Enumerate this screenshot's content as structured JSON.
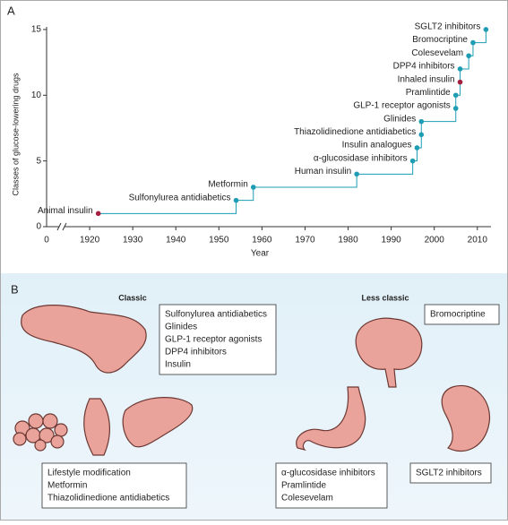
{
  "chart_data": {
    "type": "step",
    "panel_label": "A",
    "x_label": "Year",
    "y_label": "Classes of glucose-lowering drugs",
    "x_break_label": "0",
    "labels": [
      "Animal insulin",
      "Sulfonylurea antidiabetics",
      "Metformin",
      "Human insulin",
      "α-glucosidase inhibitors",
      "Insulin analogues",
      "Thiazolidinedione antidiabetics",
      "Glinides",
      "GLP-1 receptor agonists",
      "Pramlintide",
      "Inhaled insulin",
      "DPP4 inhibitors",
      "Colesevelam",
      "Bromocriptine",
      "SGLT2 inhibitors"
    ],
    "x": [
      1922,
      1954,
      1958,
      1982,
      1995,
      1996,
      1997,
      1997,
      2005,
      2005,
      2006,
      2006,
      2008,
      2009,
      2012
    ],
    "values": [
      1,
      2,
      3,
      4,
      5,
      6,
      7,
      8,
      9,
      10,
      11,
      12,
      13,
      14,
      15
    ],
    "point_colors": [
      "#a3203f",
      "#1d9cb3",
      "#1d9cb3",
      "#1d9cb3",
      "#1d9cb3",
      "#1d9cb3",
      "#1d9cb3",
      "#1d9cb3",
      "#1d9cb3",
      "#1d9cb3",
      "#a3203f",
      "#1d9cb3",
      "#1d9cb3",
      "#1d9cb3",
      "#1d9cb3"
    ],
    "line_color": "#1d9cb3",
    "xlim": [
      1910,
      2014
    ],
    "xticks": [
      1920,
      1930,
      1940,
      1950,
      1960,
      1970,
      1980,
      1990,
      2000,
      2010
    ],
    "ylim": [
      0,
      15.2
    ],
    "yticks": [
      0,
      5,
      10,
      15
    ]
  },
  "panel_b": {
    "label": "B",
    "classic": "Classic",
    "less_classic": "Less classic",
    "boxes": [
      [
        "Sulfonylurea antidiabetics",
        "Glinides",
        "GLP-1 receptor agonists",
        "DPP4 inhibitors",
        "Insulin"
      ],
      [
        "Lifestyle modification",
        "Metformin",
        "Thiazolidinedione antidiabetics"
      ],
      [
        "α-glucosidase inhibitors",
        "Pramlintide",
        "Colesevelam"
      ],
      [
        "Bromocriptine"
      ],
      [
        "SGLT2 inhibitors"
      ]
    ]
  }
}
